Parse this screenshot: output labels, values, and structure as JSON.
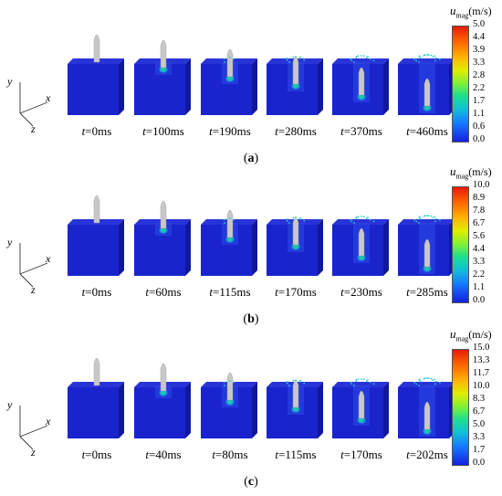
{
  "panels": [
    {
      "label": "a",
      "colorbar": {
        "title_var": "u",
        "title_sub": "mag",
        "title_unit": "(m/s)",
        "ticks": [
          "5.0",
          "4.4",
          "3.9",
          "3.3",
          "2.8",
          "2.2",
          "1.7",
          "1.1",
          "0.6",
          "0.0"
        ]
      },
      "frames": [
        {
          "t": "0ms",
          "stage": 0
        },
        {
          "t": "100ms",
          "stage": 1
        },
        {
          "t": "190ms",
          "stage": 2
        },
        {
          "t": "280ms",
          "stage": 3
        },
        {
          "t": "370ms",
          "stage": 4
        },
        {
          "t": "460ms",
          "stage": 5
        }
      ]
    },
    {
      "label": "b",
      "colorbar": {
        "title_var": "u",
        "title_sub": "mag",
        "title_unit": "(m/s)",
        "ticks": [
          "10.0",
          "8.9",
          "7.8",
          "6.7",
          "5.6",
          "4.4",
          "3.3",
          "2.2",
          "1.1",
          "0.0"
        ]
      },
      "frames": [
        {
          "t": "0ms",
          "stage": 0
        },
        {
          "t": "60ms",
          "stage": 1
        },
        {
          "t": "115ms",
          "stage": 2
        },
        {
          "t": "170ms",
          "stage": 3
        },
        {
          "t": "230ms",
          "stage": 4
        },
        {
          "t": "285ms",
          "stage": 5
        }
      ]
    },
    {
      "label": "c",
      "colorbar": {
        "title_var": "u",
        "title_sub": "mag",
        "title_unit": "(m/s)",
        "ticks": [
          "15.0",
          "13.3",
          "11.7",
          "10.0",
          "8.3",
          "6.7",
          "5.0",
          "3.3",
          "1.7",
          "0.0"
        ]
      },
      "frames": [
        {
          "t": "0ms",
          "stage": 0
        },
        {
          "t": "40ms",
          "stage": 1
        },
        {
          "t": "80ms",
          "stage": 2
        },
        {
          "t": "115ms",
          "stage": 3
        },
        {
          "t": "170ms",
          "stage": 4
        },
        {
          "t": "202ms",
          "stage": 5
        }
      ]
    }
  ],
  "axes": {
    "x": "x",
    "y": "y",
    "z": "z"
  },
  "time_var": "t",
  "colors": {
    "block_front": "#1a24cc",
    "block_side": "#10189a",
    "block_top": "#2834d8",
    "projectile": "#c8c8c8",
    "splash": "#2ad0c8",
    "core": "#20e080"
  }
}
